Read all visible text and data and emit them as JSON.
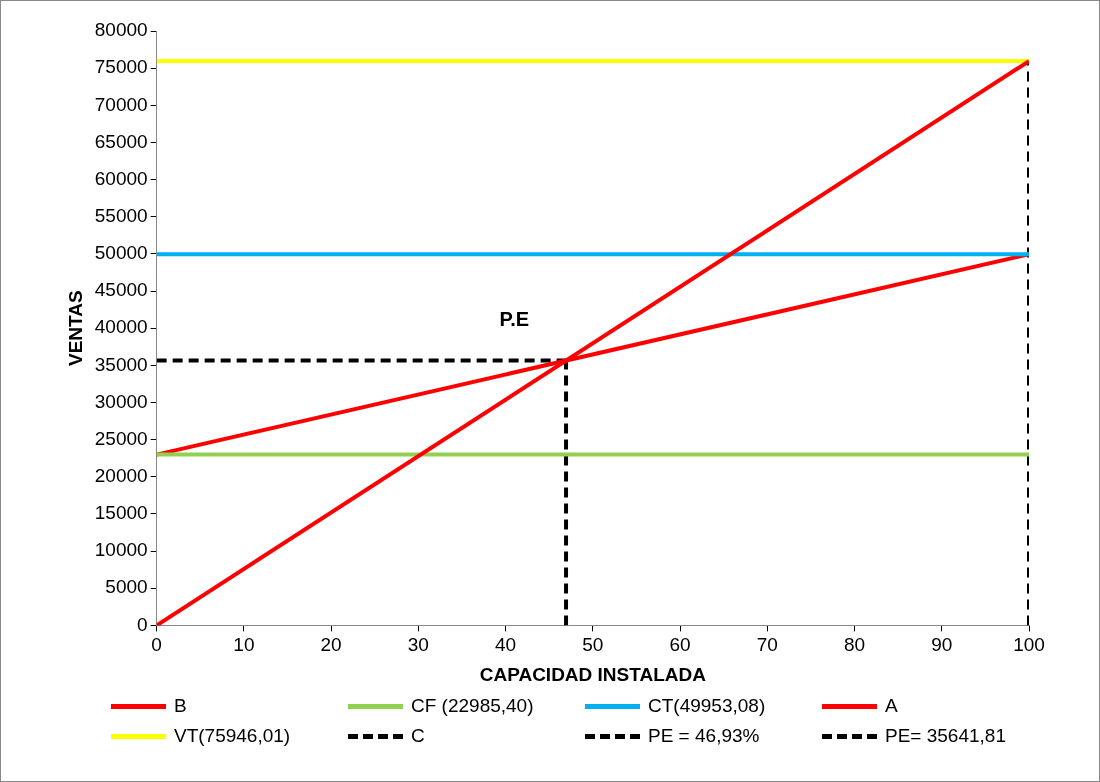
{
  "chart_data": {
    "type": "line",
    "xlabel": "CAPACIDAD INSTALADA",
    "ylabel": "VENTAS",
    "xlim": [
      0,
      100
    ],
    "ylim": [
      0,
      80000
    ],
    "xticks": [
      0,
      10,
      20,
      30,
      40,
      50,
      60,
      70,
      80,
      90,
      100
    ],
    "yticks": [
      0,
      5000,
      10000,
      15000,
      20000,
      25000,
      30000,
      35000,
      40000,
      45000,
      50000,
      55000,
      60000,
      65000,
      70000,
      75000,
      80000
    ],
    "grid": false,
    "legend": "bottom",
    "marker": "none",
    "annotations": [
      "P.E"
    ],
    "series": [
      {
        "name": "B",
        "color": "#ff0000",
        "x": [
          0,
          100
        ],
        "values": [
          0,
          75946.01
        ]
      },
      {
        "name": "CF (22985,40)",
        "color": "#92d050",
        "x": [
          0,
          100
        ],
        "values": [
          22985.4,
          22985.4
        ]
      },
      {
        "name": "CT(49953,08)",
        "color": "#00b0f0",
        "x": [
          0,
          100
        ],
        "values": [
          49953.08,
          49953.08
        ]
      },
      {
        "name": "A",
        "color": "#ff0000",
        "x": [
          0,
          100
        ],
        "values": [
          22985.4,
          49953.08
        ]
      },
      {
        "name": "VT(75946,01)",
        "color": "#ffff00",
        "x": [
          0,
          100
        ],
        "values": [
          75946.01,
          75946.01
        ]
      },
      {
        "name": "C",
        "color": "#000000",
        "line_style": "dashed",
        "x": [
          100,
          100
        ],
        "values": [
          0,
          75946.01
        ]
      },
      {
        "name": "PE = 46,93%",
        "color": "#000000",
        "line_style": "dashed",
        "x": [
          46.93,
          46.93
        ],
        "values": [
          0,
          35641.81
        ]
      },
      {
        "name": "PE= 35641,81",
        "color": "#000000",
        "line_style": "dashed",
        "x": [
          0,
          46.93
        ],
        "values": [
          35641.81,
          35641.81
        ]
      }
    ]
  }
}
